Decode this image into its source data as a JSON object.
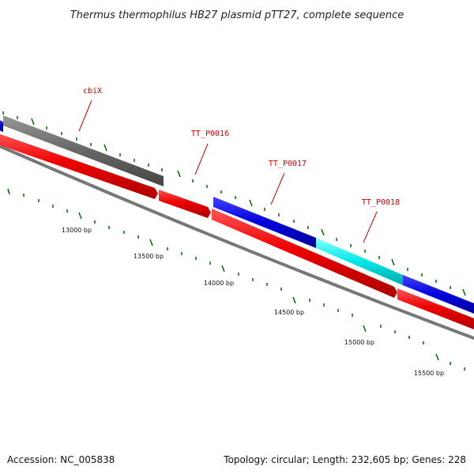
{
  "header": {
    "title": "Thermus thermophilus HB27 plasmid pTT27, complete sequence"
  },
  "genes": [
    {
      "label": "cbiX"
    },
    {
      "label": "TT_P0016"
    },
    {
      "label": "TT_P0017"
    },
    {
      "label": "TT_P0018"
    }
  ],
  "scale": {
    "labels": [
      "13000 bp",
      "13500 bp",
      "14000 bp",
      "14500 bp",
      "15000 bp",
      "15500 bp"
    ]
  },
  "footer": {
    "accession": "Accession: NC_005838",
    "summary": "Topology: circular; Length: 232,605 bp; Genes: 228"
  },
  "colors": {
    "forward_gene": "#0000dd",
    "highlight_gene": "#00e8e8",
    "other_gene": "#666666",
    "reverse_gene": "#ee0000",
    "backbone": "#888888",
    "ticks": "#006600",
    "labels": "#cc0000"
  }
}
